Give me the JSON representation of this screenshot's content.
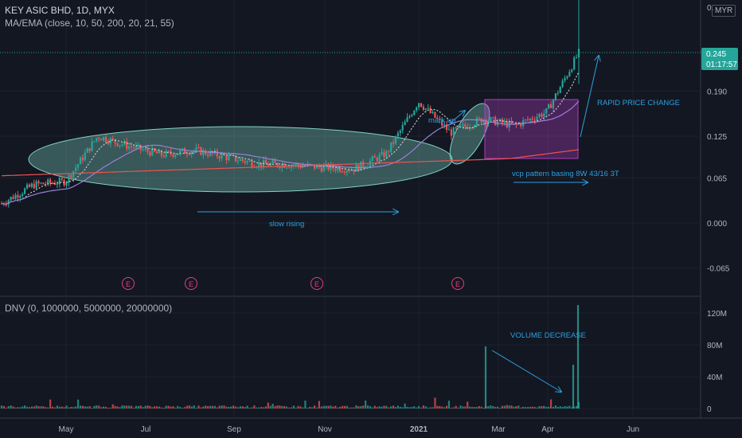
{
  "header": {
    "symbol_line": "KEY ASIC BHD, 1D, MYX",
    "ma_line": "MA/EMA (close, 10, 50, 200, 20, 21, 55)",
    "volume_line": "DNV (0, 1000000, 5000000, 20000000)",
    "currency": "MYR"
  },
  "price_tag": {
    "price": "0.245",
    "countdown": "01:17:57"
  },
  "annotations": {
    "mark_up": "mark up",
    "rapid": "RAPID PRICE CHANGE",
    "vcp": "vcp pattern basing 8W 43/16 3T",
    "slow_rising": "slow rising",
    "volume_decrease": "VOLUME DECREASE"
  },
  "earnings_label": "E",
  "colors": {
    "background": "#131722",
    "up": "#26a69a",
    "down": "#ef5350",
    "annotation": "#2e9fe0",
    "ellipse": "#7fd1c4",
    "box": "#b03cbf",
    "earnings": "#e0407a"
  },
  "chart_data": [
    {
      "type": "candlestick",
      "title": "KEY ASIC BHD, 1D, MYX",
      "xlabel": "",
      "ylabel": "",
      "x_ticks": [
        "May",
        "Jul",
        "Sep",
        "Nov",
        "2021",
        "Mar",
        "Apr",
        "Jun"
      ],
      "y_ticks": [
        -0.065,
        0.0,
        0.065,
        0.125,
        0.19,
        0.245
      ],
      "ylim": [
        -0.09,
        0.32
      ],
      "last_price": 0.245,
      "approx_close_path": [
        {
          "x": "Apr 2020",
          "y": 0.028
        },
        {
          "x": "Apr 2020",
          "y": 0.055
        },
        {
          "x": "May 2020",
          "y": 0.06
        },
        {
          "x": "May 2020",
          "y": 0.125
        },
        {
          "x": "Jun 2020",
          "y": 0.11
        },
        {
          "x": "Jul 2020",
          "y": 0.098
        },
        {
          "x": "Aug 2020",
          "y": 0.105
        },
        {
          "x": "Sep 2020",
          "y": 0.095
        },
        {
          "x": "Oct 2020",
          "y": 0.085
        },
        {
          "x": "Nov 2020",
          "y": 0.084
        },
        {
          "x": "Dec 2020",
          "y": 0.08
        },
        {
          "x": "Jan 2021",
          "y": 0.078
        },
        {
          "x": "Feb 2021",
          "y": 0.1
        },
        {
          "x": "Feb 2021",
          "y": 0.175
        },
        {
          "x": "Mar 2021",
          "y": 0.13
        },
        {
          "x": "Mar 2021",
          "y": 0.15
        },
        {
          "x": "Apr 2021",
          "y": 0.14
        },
        {
          "x": "Apr 2021",
          "y": 0.16
        },
        {
          "x": "Apr 2021",
          "y": 0.245
        }
      ],
      "moving_averages": [
        {
          "name": "short",
          "color": "#c8c8c8"
        },
        {
          "name": "mid",
          "color": "#9c7fd8"
        },
        {
          "name": "long",
          "color": "#ef5350"
        }
      ],
      "earnings_markers": [
        "Jun 2020",
        "Aug 2020",
        "Oct 2020",
        "Feb 2021"
      ]
    },
    {
      "type": "bar",
      "title": "DNV (0, 1000000, 5000000, 20000000)",
      "y_ticks": [
        0,
        40,
        80,
        120
      ],
      "y_tick_labels": [
        "0",
        "40M",
        "80M",
        "120M"
      ],
      "ylim": [
        0,
        130
      ],
      "notable_volumes_m": [
        {
          "x": "Feb 2021",
          "value": 78
        },
        {
          "x": "Apr 2021",
          "value": 55
        },
        {
          "x": "Apr 2021",
          "value": 130
        }
      ]
    }
  ]
}
